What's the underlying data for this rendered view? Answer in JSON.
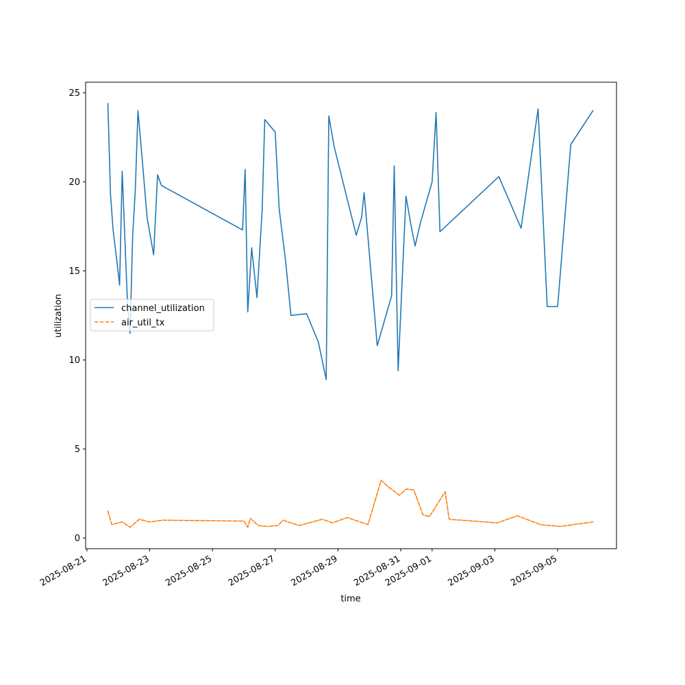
{
  "chart_data": {
    "type": "line",
    "title": "",
    "xlabel": "time",
    "ylabel": "utilization",
    "x_axis_type": "date",
    "xlim": [
      "2025-08-20T23:00",
      "2025-09-06T21:00"
    ],
    "ylim": [
      -0.6,
      25.6
    ],
    "x_ticks": [
      "2025-08-21",
      "2025-08-23",
      "2025-08-25",
      "2025-08-27",
      "2025-08-29",
      "2025-08-31",
      "2025-09-01",
      "2025-09-03",
      "2025-09-05"
    ],
    "y_ticks": [
      0,
      5,
      10,
      15,
      20,
      25
    ],
    "grid": false,
    "legend_position": "center-left",
    "series": [
      {
        "name": "channel_utilization",
        "color": "#1f77b4",
        "line_style": "solid",
        "points": [
          [
            "2025-08-21T16:00",
            24.4
          ],
          [
            "2025-08-21T18:00",
            19.3
          ],
          [
            "2025-08-21T20:00",
            17.3
          ],
          [
            "2025-08-21T23:00",
            15.5
          ],
          [
            "2025-08-22T01:00",
            14.2
          ],
          [
            "2025-08-22T03:00",
            20.6
          ],
          [
            "2025-08-22T05:00",
            16.8
          ],
          [
            "2025-08-22T07:00",
            13.2
          ],
          [
            "2025-08-22T09:00",
            11.5
          ],
          [
            "2025-08-22T11:00",
            17.0
          ],
          [
            "2025-08-22T13:00",
            19.5
          ],
          [
            "2025-08-22T15:00",
            24.0
          ],
          [
            "2025-08-22T18:00",
            21.5
          ],
          [
            "2025-08-22T22:00",
            18.0
          ],
          [
            "2025-08-23T03:00",
            15.9
          ],
          [
            "2025-08-23T06:00",
            20.4
          ],
          [
            "2025-08-23T09:00",
            19.8
          ],
          [
            "2025-08-25T23:00",
            17.3
          ],
          [
            "2025-08-26T01:00",
            20.7
          ],
          [
            "2025-08-26T03:00",
            12.7
          ],
          [
            "2025-08-26T06:00",
            16.3
          ],
          [
            "2025-08-26T10:00",
            13.5
          ],
          [
            "2025-08-26T14:00",
            18.4
          ],
          [
            "2025-08-26T16:00",
            23.5
          ],
          [
            "2025-08-27T00:00",
            22.8
          ],
          [
            "2025-08-27T03:00",
            18.5
          ],
          [
            "2025-08-27T08:00",
            15.5
          ],
          [
            "2025-08-27T12:00",
            12.5
          ],
          [
            "2025-08-28T00:00",
            12.6
          ],
          [
            "2025-08-28T09:00",
            11.0
          ],
          [
            "2025-08-28T15:00",
            8.9
          ],
          [
            "2025-08-28T17:00",
            23.7
          ],
          [
            "2025-08-28T21:00",
            22.0
          ],
          [
            "2025-08-29T14:00",
            17.0
          ],
          [
            "2025-08-29T18:00",
            18.0
          ],
          [
            "2025-08-29T20:00",
            19.4
          ],
          [
            "2025-08-30T06:00",
            10.8
          ],
          [
            "2025-08-30T17:00",
            13.6
          ],
          [
            "2025-08-30T19:00",
            20.9
          ],
          [
            "2025-08-30T22:00",
            9.4
          ],
          [
            "2025-08-31T02:00",
            16.0
          ],
          [
            "2025-08-31T04:00",
            19.2
          ],
          [
            "2025-08-31T08:00",
            17.5
          ],
          [
            "2025-08-31T11:00",
            16.4
          ],
          [
            "2025-08-31T15:00",
            17.7
          ],
          [
            "2025-09-01T00:00",
            20.0
          ],
          [
            "2025-09-01T03:00",
            23.9
          ],
          [
            "2025-09-01T06:00",
            17.2
          ],
          [
            "2025-09-03T03:00",
            20.3
          ],
          [
            "2025-09-03T20:00",
            17.4
          ],
          [
            "2025-09-04T09:00",
            24.1
          ],
          [
            "2025-09-04T16:00",
            13.0
          ],
          [
            "2025-09-05T00:00",
            13.0
          ],
          [
            "2025-09-05T10:00",
            22.1
          ],
          [
            "2025-09-06T03:00",
            24.0
          ]
        ]
      },
      {
        "name": "air_util_tx",
        "color": "#ff7f0e",
        "line_style": "dashed",
        "points": [
          [
            "2025-08-21T16:00",
            1.5
          ],
          [
            "2025-08-21T19:00",
            0.75
          ],
          [
            "2025-08-22T03:00",
            0.9
          ],
          [
            "2025-08-22T09:00",
            0.6
          ],
          [
            "2025-08-22T16:00",
            1.05
          ],
          [
            "2025-08-23T00:00",
            0.9
          ],
          [
            "2025-08-23T10:00",
            1.0
          ],
          [
            "2025-08-26T00:00",
            0.95
          ],
          [
            "2025-08-26T03:00",
            0.6
          ],
          [
            "2025-08-26T05:00",
            1.1
          ],
          [
            "2025-08-26T11:00",
            0.7
          ],
          [
            "2025-08-26T18:00",
            0.65
          ],
          [
            "2025-08-27T02:00",
            0.7
          ],
          [
            "2025-08-27T06:00",
            1.0
          ],
          [
            "2025-08-27T18:00",
            0.7
          ],
          [
            "2025-08-28T12:00",
            1.05
          ],
          [
            "2025-08-28T20:00",
            0.85
          ],
          [
            "2025-08-29T07:00",
            1.15
          ],
          [
            "2025-08-29T23:00",
            0.75
          ],
          [
            "2025-08-30T09:00",
            3.25
          ],
          [
            "2025-08-30T14:00",
            2.9
          ],
          [
            "2025-08-30T23:00",
            2.4
          ],
          [
            "2025-08-31T04:00",
            2.75
          ],
          [
            "2025-08-31T10:00",
            2.7
          ],
          [
            "2025-08-31T17:00",
            1.3
          ],
          [
            "2025-08-31T22:00",
            1.2
          ],
          [
            "2025-09-01T10:00",
            2.6
          ],
          [
            "2025-09-01T13:00",
            1.05
          ],
          [
            "2025-09-03T02:00",
            0.85
          ],
          [
            "2025-09-03T17:00",
            1.25
          ],
          [
            "2025-09-04T11:00",
            0.75
          ],
          [
            "2025-09-05T02:00",
            0.65
          ],
          [
            "2025-09-06T03:00",
            0.9
          ]
        ]
      }
    ]
  }
}
